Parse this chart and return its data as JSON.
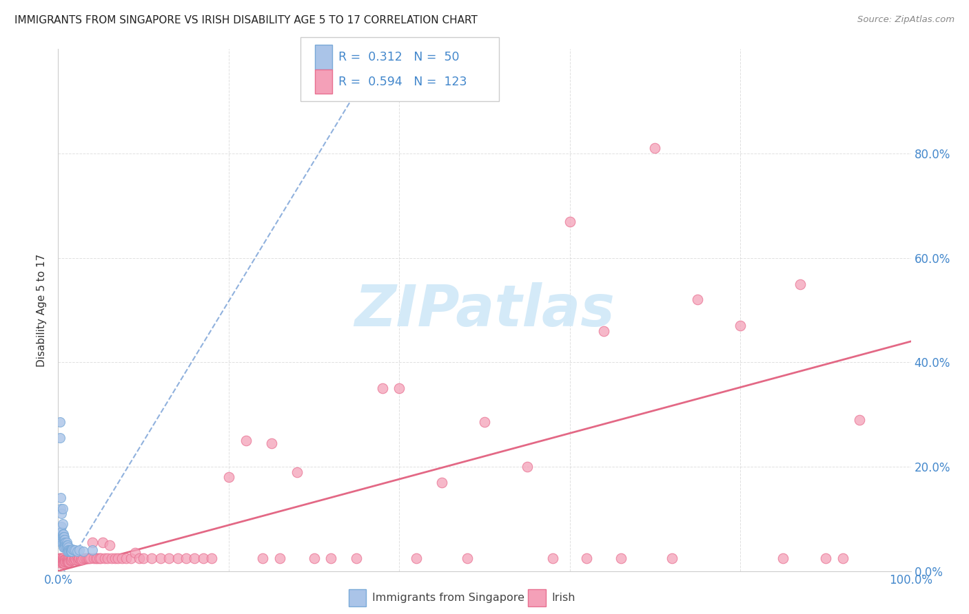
{
  "title": "IMMIGRANTS FROM SINGAPORE VS IRISH DISABILITY AGE 5 TO 17 CORRELATION CHART",
  "source": "Source: ZipAtlas.com",
  "ylabel": "Disability Age 5 to 17",
  "xlim": [
    0.0,
    1.0
  ],
  "ylim": [
    0.0,
    1.0
  ],
  "singapore_color": "#aac4e8",
  "singapore_edge": "#7aaad8",
  "irish_color": "#f4a0b8",
  "irish_edge": "#e87090",
  "trend_singapore_color": "#5588cc",
  "trend_irish_color": "#e05878",
  "background_color": "#ffffff",
  "grid_color": "#d8d8d8",
  "title_color": "#222222",
  "axis_label_color": "#4488cc",
  "ylabel_color": "#333333",
  "watermark_color": "#d0e8f8",
  "singapore_trend_x0": 0.0,
  "singapore_trend_y0": -0.02,
  "singapore_trend_x1": 0.38,
  "singapore_trend_y1": 1.0,
  "irish_trend_x0": 0.0,
  "irish_trend_y0": 0.0,
  "irish_trend_x1": 1.0,
  "irish_trend_y1": 0.44,
  "sing_x": [
    0.002,
    0.002,
    0.003,
    0.003,
    0.003,
    0.004,
    0.004,
    0.004,
    0.004,
    0.005,
    0.005,
    0.005,
    0.005,
    0.005,
    0.006,
    0.006,
    0.006,
    0.006,
    0.007,
    0.007,
    0.007,
    0.007,
    0.008,
    0.008,
    0.008,
    0.009,
    0.009,
    0.009,
    0.01,
    0.01,
    0.01,
    0.011,
    0.011,
    0.011,
    0.012,
    0.012,
    0.013,
    0.013,
    0.014,
    0.014,
    0.015,
    0.015,
    0.016,
    0.017,
    0.018,
    0.02,
    0.022,
    0.025,
    0.03,
    0.04
  ],
  "sing_y": [
    0.285,
    0.255,
    0.14,
    0.12,
    0.065,
    0.11,
    0.085,
    0.075,
    0.055,
    0.12,
    0.09,
    0.07,
    0.065,
    0.055,
    0.07,
    0.065,
    0.06,
    0.045,
    0.065,
    0.06,
    0.055,
    0.045,
    0.06,
    0.055,
    0.05,
    0.055,
    0.05,
    0.045,
    0.055,
    0.05,
    0.045,
    0.05,
    0.04,
    0.038,
    0.045,
    0.04,
    0.04,
    0.038,
    0.04,
    0.038,
    0.04,
    0.038,
    0.038,
    0.042,
    0.04,
    0.04,
    0.038,
    0.04,
    0.038,
    0.04
  ],
  "irish_x": [
    0.001,
    0.001,
    0.001,
    0.002,
    0.002,
    0.002,
    0.003,
    0.003,
    0.003,
    0.003,
    0.004,
    0.004,
    0.004,
    0.005,
    0.005,
    0.005,
    0.006,
    0.006,
    0.006,
    0.007,
    0.007,
    0.007,
    0.008,
    0.008,
    0.009,
    0.009,
    0.01,
    0.01,
    0.011,
    0.011,
    0.012,
    0.012,
    0.013,
    0.013,
    0.014,
    0.015,
    0.015,
    0.016,
    0.017,
    0.018,
    0.019,
    0.02,
    0.021,
    0.022,
    0.023,
    0.024,
    0.025,
    0.026,
    0.027,
    0.028,
    0.03,
    0.032,
    0.034,
    0.035,
    0.036,
    0.038,
    0.04,
    0.042,
    0.044,
    0.046,
    0.048,
    0.05,
    0.052,
    0.055,
    0.058,
    0.06,
    0.063,
    0.067,
    0.07,
    0.075,
    0.08,
    0.085,
    0.09,
    0.095,
    0.1,
    0.11,
    0.12,
    0.13,
    0.14,
    0.15,
    0.16,
    0.17,
    0.18,
    0.2,
    0.22,
    0.24,
    0.25,
    0.26,
    0.28,
    0.3,
    0.32,
    0.35,
    0.38,
    0.4,
    0.42,
    0.45,
    0.48,
    0.5,
    0.55,
    0.58,
    0.6,
    0.62,
    0.64,
    0.66,
    0.7,
    0.72,
    0.75,
    0.8,
    0.85,
    0.87,
    0.9,
    0.92,
    0.94
  ],
  "irish_y": [
    0.02,
    0.025,
    0.018,
    0.025,
    0.02,
    0.018,
    0.025,
    0.02,
    0.018,
    0.015,
    0.025,
    0.02,
    0.018,
    0.025,
    0.02,
    0.015,
    0.025,
    0.02,
    0.015,
    0.022,
    0.018,
    0.015,
    0.022,
    0.018,
    0.022,
    0.018,
    0.022,
    0.018,
    0.022,
    0.018,
    0.02,
    0.018,
    0.022,
    0.018,
    0.02,
    0.025,
    0.02,
    0.022,
    0.025,
    0.022,
    0.025,
    0.025,
    0.022,
    0.025,
    0.022,
    0.025,
    0.025,
    0.022,
    0.025,
    0.022,
    0.025,
    0.025,
    0.025,
    0.025,
    0.025,
    0.025,
    0.055,
    0.025,
    0.025,
    0.025,
    0.025,
    0.025,
    0.055,
    0.025,
    0.025,
    0.05,
    0.025,
    0.025,
    0.025,
    0.025,
    0.025,
    0.025,
    0.035,
    0.025,
    0.025,
    0.025,
    0.025,
    0.025,
    0.025,
    0.025,
    0.025,
    0.025,
    0.025,
    0.18,
    0.25,
    0.025,
    0.245,
    0.025,
    0.19,
    0.025,
    0.025,
    0.025,
    0.35,
    0.35,
    0.025,
    0.17,
    0.025,
    0.285,
    0.2,
    0.025,
    0.67,
    0.025,
    0.46,
    0.025,
    0.81,
    0.025,
    0.52,
    0.47,
    0.025,
    0.55,
    0.025,
    0.025,
    0.29
  ]
}
